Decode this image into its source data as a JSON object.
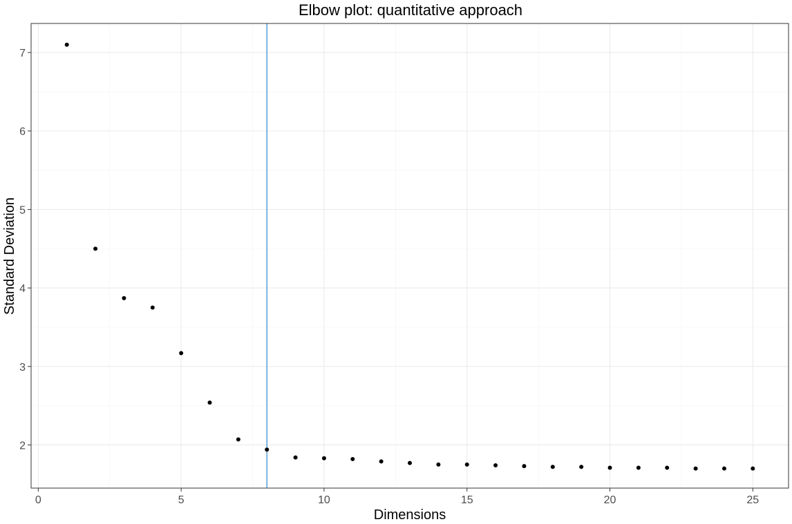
{
  "chart_data": {
    "type": "scatter",
    "title": "Elbow plot: quantitative approach",
    "xlabel": "Dimensions",
    "ylabel": "Standard Deviation",
    "xlim": [
      -0.25,
      26.25
    ],
    "ylim": [
      1.45,
      7.37
    ],
    "x_ticks": [
      0,
      5,
      10,
      15,
      20,
      25
    ],
    "y_ticks": [
      2,
      3,
      4,
      5,
      6,
      7
    ],
    "x_tick_labels": [
      "0",
      "5",
      "10",
      "15",
      "20",
      "25"
    ],
    "y_tick_labels": [
      "2",
      "3",
      "4",
      "5",
      "6",
      "7"
    ],
    "grid": true,
    "legend": "none",
    "x": [
      1,
      2,
      3,
      4,
      5,
      6,
      7,
      8,
      9,
      10,
      11,
      12,
      13,
      14,
      15,
      16,
      17,
      18,
      19,
      20,
      21,
      22,
      23,
      24,
      25
    ],
    "y": [
      7.1,
      4.5,
      3.87,
      3.75,
      3.17,
      2.54,
      2.07,
      1.94,
      1.84,
      1.83,
      1.82,
      1.79,
      1.77,
      1.75,
      1.75,
      1.74,
      1.73,
      1.72,
      1.72,
      1.71,
      1.71,
      1.71,
      1.7,
      1.7,
      1.7
    ],
    "point_color": "#000000",
    "vline": {
      "x": 8,
      "color": "#3c8fd0"
    }
  }
}
